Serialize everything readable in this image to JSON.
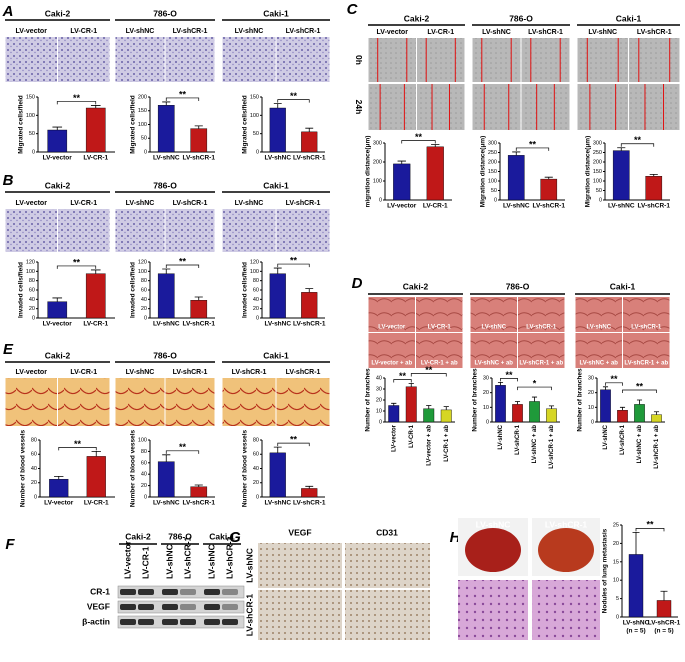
{
  "figure": {
    "A": {
      "letter": "A",
      "titles": [
        "Caki-2",
        "786-O",
        "Caki-1"
      ],
      "image_labels": [
        [
          "LV-vector",
          "LV-CR-1"
        ],
        [
          "LV-shNC",
          "LV-shCR-1"
        ],
        [
          "LV-shNC",
          "LV-shCR-1"
        ]
      ]
    },
    "B": {
      "letter": "B",
      "titles": [
        "Caki-2",
        "786-O",
        "Caki-1"
      ],
      "image_labels": [
        [
          "LV-vector",
          "LV-CR-1"
        ],
        [
          "LV-shNC",
          "LV-shCR-1"
        ],
        [
          "LV-shNC",
          "LV-shCR-1"
        ]
      ]
    },
    "C": {
      "letter": "C",
      "titles": [
        "Caki-2",
        "786-O",
        "Caki-1"
      ],
      "image_labels": [
        [
          "LV-vector",
          "LV-CR-1"
        ],
        [
          "LV-shNC",
          "LV-shCR-1"
        ],
        [
          "LV-shNC",
          "LV-shCR-1"
        ]
      ],
      "time_labels": [
        "0h",
        "24h"
      ]
    },
    "D": {
      "letter": "D",
      "titles": [
        "Caki-2",
        "786-O",
        "Caki-1"
      ],
      "image_labels": [
        [
          "LV-vector",
          "LV-CR-1",
          "LV-vector + ab",
          "LV-CR-1 + ab"
        ],
        [
          "LV-shNC",
          "LV-shCR-1",
          "LV-shNC + ab",
          "LV-shCR-1 + ab"
        ],
        [
          "LV-shNC",
          "LV-shCR-1",
          "LV-shNC + ab",
          "LV-shCR-1 + ab"
        ]
      ]
    },
    "E": {
      "letter": "E",
      "titles": [
        "Caki-2",
        "786-O",
        "Caki-1"
      ],
      "image_labels": [
        [
          "LV-vector",
          "LV-CR-1"
        ],
        [
          "LV-shNC",
          "LV-shCR-1"
        ],
        [
          "LV-shCR-1",
          "LV-shCR-1"
        ]
      ]
    },
    "F": {
      "letter": "F",
      "titles": [
        "Caki-2",
        "786-O",
        "Caki-1"
      ],
      "lanes": [
        "LV-vector",
        "LV-CR-1",
        "LV-shNC",
        "LV-shCR-1",
        "LV-shNC",
        "LV-shCR-1"
      ],
      "rows": [
        "CR-1",
        "VEGF",
        "β-actin"
      ]
    },
    "G": {
      "letter": "G",
      "columns": [
        "VEGF",
        "CD31"
      ],
      "rows": [
        "LV-shNC",
        "LV-shCR-1"
      ]
    },
    "H": {
      "letter": "H",
      "image_labels": [
        "LV-shNC",
        "LV-shCR-1"
      ]
    }
  },
  "chart_data": [
    {
      "type": "bar",
      "ylabel": "Migrated cells/field",
      "categories": [
        "LV-vector",
        "LV-CR-1"
      ],
      "values": [
        60,
        120
      ],
      "errors": [
        8,
        7
      ],
      "colors": [
        "#1a1a9c",
        "#c01818"
      ],
      "ylim": [
        0,
        150
      ],
      "yticks": [
        0,
        50,
        100,
        150
      ],
      "annotations": [
        "**"
      ]
    },
    {
      "type": "bar",
      "ylabel": "Migrated cells/field",
      "categories": [
        "LV-shNC",
        "LV-shCR-1"
      ],
      "values": [
        170,
        85
      ],
      "errors": [
        12,
        10
      ],
      "colors": [
        "#1a1a9c",
        "#c01818"
      ],
      "ylim": [
        0,
        200
      ],
      "yticks": [
        0,
        50,
        100,
        150,
        200
      ],
      "annotations": [
        "**"
      ]
    },
    {
      "type": "bar",
      "ylabel": "Migrated cells/field",
      "categories": [
        "LV-shNC",
        "LV-shCR-1"
      ],
      "values": [
        120,
        55
      ],
      "errors": [
        12,
        10
      ],
      "colors": [
        "#1a1a9c",
        "#c01818"
      ],
      "ylim": [
        0,
        150
      ],
      "yticks": [
        0,
        50,
        100,
        150
      ],
      "annotations": [
        "**"
      ]
    },
    {
      "type": "bar",
      "ylabel": "Invaded cells/field",
      "categories": [
        "LV-vector",
        "LV-CR-1"
      ],
      "values": [
        35,
        95
      ],
      "errors": [
        8,
        8
      ],
      "colors": [
        "#1a1a9c",
        "#c01818"
      ],
      "ylim": [
        0,
        120
      ],
      "yticks": [
        0,
        20,
        40,
        60,
        80,
        100,
        120
      ],
      "annotations": [
        "**"
      ]
    },
    {
      "type": "bar",
      "ylabel": "Invaded cells/field",
      "categories": [
        "LV-shNC",
        "LV-shCR-1"
      ],
      "values": [
        95,
        38
      ],
      "errors": [
        10,
        7
      ],
      "colors": [
        "#1a1a9c",
        "#c01818"
      ],
      "ylim": [
        0,
        120
      ],
      "yticks": [
        0,
        20,
        40,
        60,
        80,
        100,
        120
      ],
      "annotations": [
        "**"
      ]
    },
    {
      "type": "bar",
      "ylabel": "Invaded cells/field",
      "categories": [
        "LV-shNC",
        "LV-shCR-1"
      ],
      "values": [
        95,
        55
      ],
      "errors": [
        12,
        8
      ],
      "colors": [
        "#1a1a9c",
        "#c01818"
      ],
      "ylim": [
        0,
        120
      ],
      "yticks": [
        0,
        20,
        40,
        60,
        80,
        100,
        120
      ],
      "annotations": [
        "**"
      ]
    },
    {
      "type": "bar",
      "ylabel": "migration distance(μm)",
      "categories": [
        "LV-vector",
        "LV-CR-1"
      ],
      "values": [
        190,
        280
      ],
      "errors": [
        15,
        12
      ],
      "colors": [
        "#1a1a9c",
        "#c01818"
      ],
      "ylim": [
        0,
        300
      ],
      "yticks": [
        0,
        100,
        200,
        300
      ],
      "annotations": [
        "**"
      ]
    },
    {
      "type": "bar",
      "ylabel": "Migration distance(μm)",
      "categories": [
        "LV-shNC",
        "LV-shCR-1"
      ],
      "values": [
        235,
        110
      ],
      "errors": [
        18,
        10
      ],
      "colors": [
        "#1a1a9c",
        "#c01818"
      ],
      "ylim": [
        0,
        300
      ],
      "yticks": [
        0,
        50,
        100,
        150,
        200,
        250,
        300
      ],
      "annotations": [
        "**"
      ]
    },
    {
      "type": "bar",
      "ylabel": "Migration distance(μm)",
      "categories": [
        "LV-shNC",
        "LV-shCR-1"
      ],
      "values": [
        260,
        125
      ],
      "errors": [
        15,
        10
      ],
      "colors": [
        "#1a1a9c",
        "#c01818"
      ],
      "ylim": [
        0,
        300
      ],
      "yticks": [
        0,
        50,
        100,
        150,
        200,
        250,
        300
      ],
      "annotations": [
        "**"
      ]
    },
    {
      "type": "bar",
      "ylabel": "Number of branches",
      "categories": [
        "LV-vector",
        "LV-CR-1",
        "LV-vector + ab",
        "LV-CR-1 + ab"
      ],
      "values": [
        15,
        32,
        12,
        11
      ],
      "errors": [
        2,
        3,
        3,
        3
      ],
      "colors": [
        "#1a1a9c",
        "#c01818",
        "#1f9a3a",
        "#d6d624"
      ],
      "ylim": [
        0,
        40
      ],
      "yticks": [
        0,
        10,
        20,
        30,
        40
      ],
      "annotations": [
        "**",
        "**"
      ]
    },
    {
      "type": "bar",
      "ylabel": "Number of branches",
      "categories": [
        "LV-shNC",
        "LV-shCR-1",
        "LV-shNC + ab",
        "LV-shCR-1 + ab"
      ],
      "values": [
        25,
        12,
        14,
        9
      ],
      "errors": [
        2,
        2,
        3,
        2
      ],
      "colors": [
        "#1a1a9c",
        "#c01818",
        "#1f9a3a",
        "#d6d624"
      ],
      "ylim": [
        0,
        30
      ],
      "yticks": [
        0,
        10,
        20,
        30
      ],
      "annotations": [
        "**",
        "*"
      ]
    },
    {
      "type": "bar",
      "ylabel": "Number of branches",
      "categories": [
        "LV-shNC",
        "LV-shCR-1",
        "LV-shNC + ab",
        "LV-shCR-1 + ab"
      ],
      "values": [
        22,
        8,
        12,
        5
      ],
      "errors": [
        2,
        2,
        3,
        2
      ],
      "colors": [
        "#1a1a9c",
        "#c01818",
        "#1f9a3a",
        "#d6d624"
      ],
      "ylim": [
        0,
        30
      ],
      "yticks": [
        0,
        10,
        20,
        30
      ],
      "annotations": [
        "**",
        "**"
      ]
    },
    {
      "type": "bar",
      "ylabel": "Number of blood vessels",
      "categories": [
        "LV-vector",
        "LV-CR-1"
      ],
      "values": [
        25,
        57
      ],
      "errors": [
        4,
        7
      ],
      "colors": [
        "#1a1a9c",
        "#c01818"
      ],
      "ylim": [
        0,
        80
      ],
      "yticks": [
        0,
        20,
        40,
        60,
        80
      ],
      "annotations": [
        "**"
      ]
    },
    {
      "type": "bar",
      "ylabel": "Number of blood vessels",
      "categories": [
        "LV-shNC",
        "LV-shCR-1"
      ],
      "values": [
        62,
        18
      ],
      "errors": [
        12,
        3
      ],
      "colors": [
        "#1a1a9c",
        "#c01818"
      ],
      "ylim": [
        0,
        100
      ],
      "yticks": [
        0,
        20,
        40,
        60,
        80,
        100
      ],
      "annotations": [
        "**"
      ]
    },
    {
      "type": "bar",
      "ylabel": "Number of blood vessels",
      "categories": [
        "LV-shNC",
        "LV-shCR-1"
      ],
      "values": [
        62,
        12
      ],
      "errors": [
        8,
        3
      ],
      "colors": [
        "#1a1a9c",
        "#c01818"
      ],
      "ylim": [
        0,
        80
      ],
      "yticks": [
        0,
        20,
        40,
        60,
        80
      ],
      "annotations": [
        "**"
      ]
    },
    {
      "type": "bar",
      "ylabel": "Nodules of lung metastasis",
      "categories": [
        "LV-shNC",
        "LV-shCR-1"
      ],
      "sample_sizes": [
        "(n = 5)",
        "(n = 5)"
      ],
      "values": [
        17,
        4.5
      ],
      "errors": [
        6,
        2.5
      ],
      "colors": [
        "#1a1a9c",
        "#c01818"
      ],
      "ylim": [
        0,
        25
      ],
      "yticks": [
        0,
        5,
        10,
        15,
        20,
        25
      ],
      "annotations": [
        "**"
      ]
    }
  ]
}
